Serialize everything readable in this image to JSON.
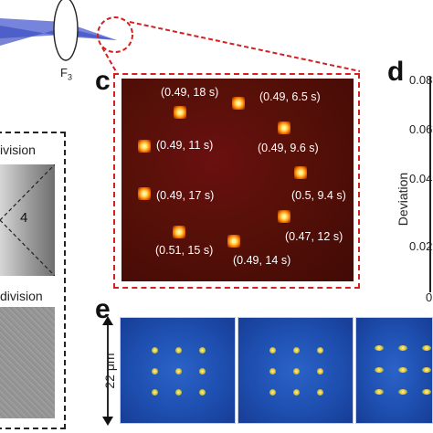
{
  "panels": {
    "c": "c",
    "d": "d",
    "e": "e"
  },
  "lens": {
    "label": "F",
    "subscript": "3"
  },
  "spot_labels": [
    "(0.49, 18 s)",
    "(0.49, 6.5 s)",
    "(0.49, 11 s)",
    "(0.49, 9.6 s)",
    "(0.49, 17 s)",
    "(0.5, 9.4 s)",
    "(0.47, 12 s)",
    "(0.51, 15 s)",
    "(0.49, 14 s)"
  ],
  "left_panel": {
    "top_label": "ivision",
    "region_number": "4",
    "bottom_label": "division"
  },
  "panel_d": {
    "ylabel": "Deviation",
    "ticks": [
      "0.08",
      "0.06",
      "0.04",
      "0.02",
      "0"
    ]
  },
  "panel_e": {
    "scale_label": "22 μm"
  },
  "colors": {
    "accent_red": "#d42020",
    "beam_blue": "#4455cc",
    "camera_blue": "#1e4fb0"
  }
}
